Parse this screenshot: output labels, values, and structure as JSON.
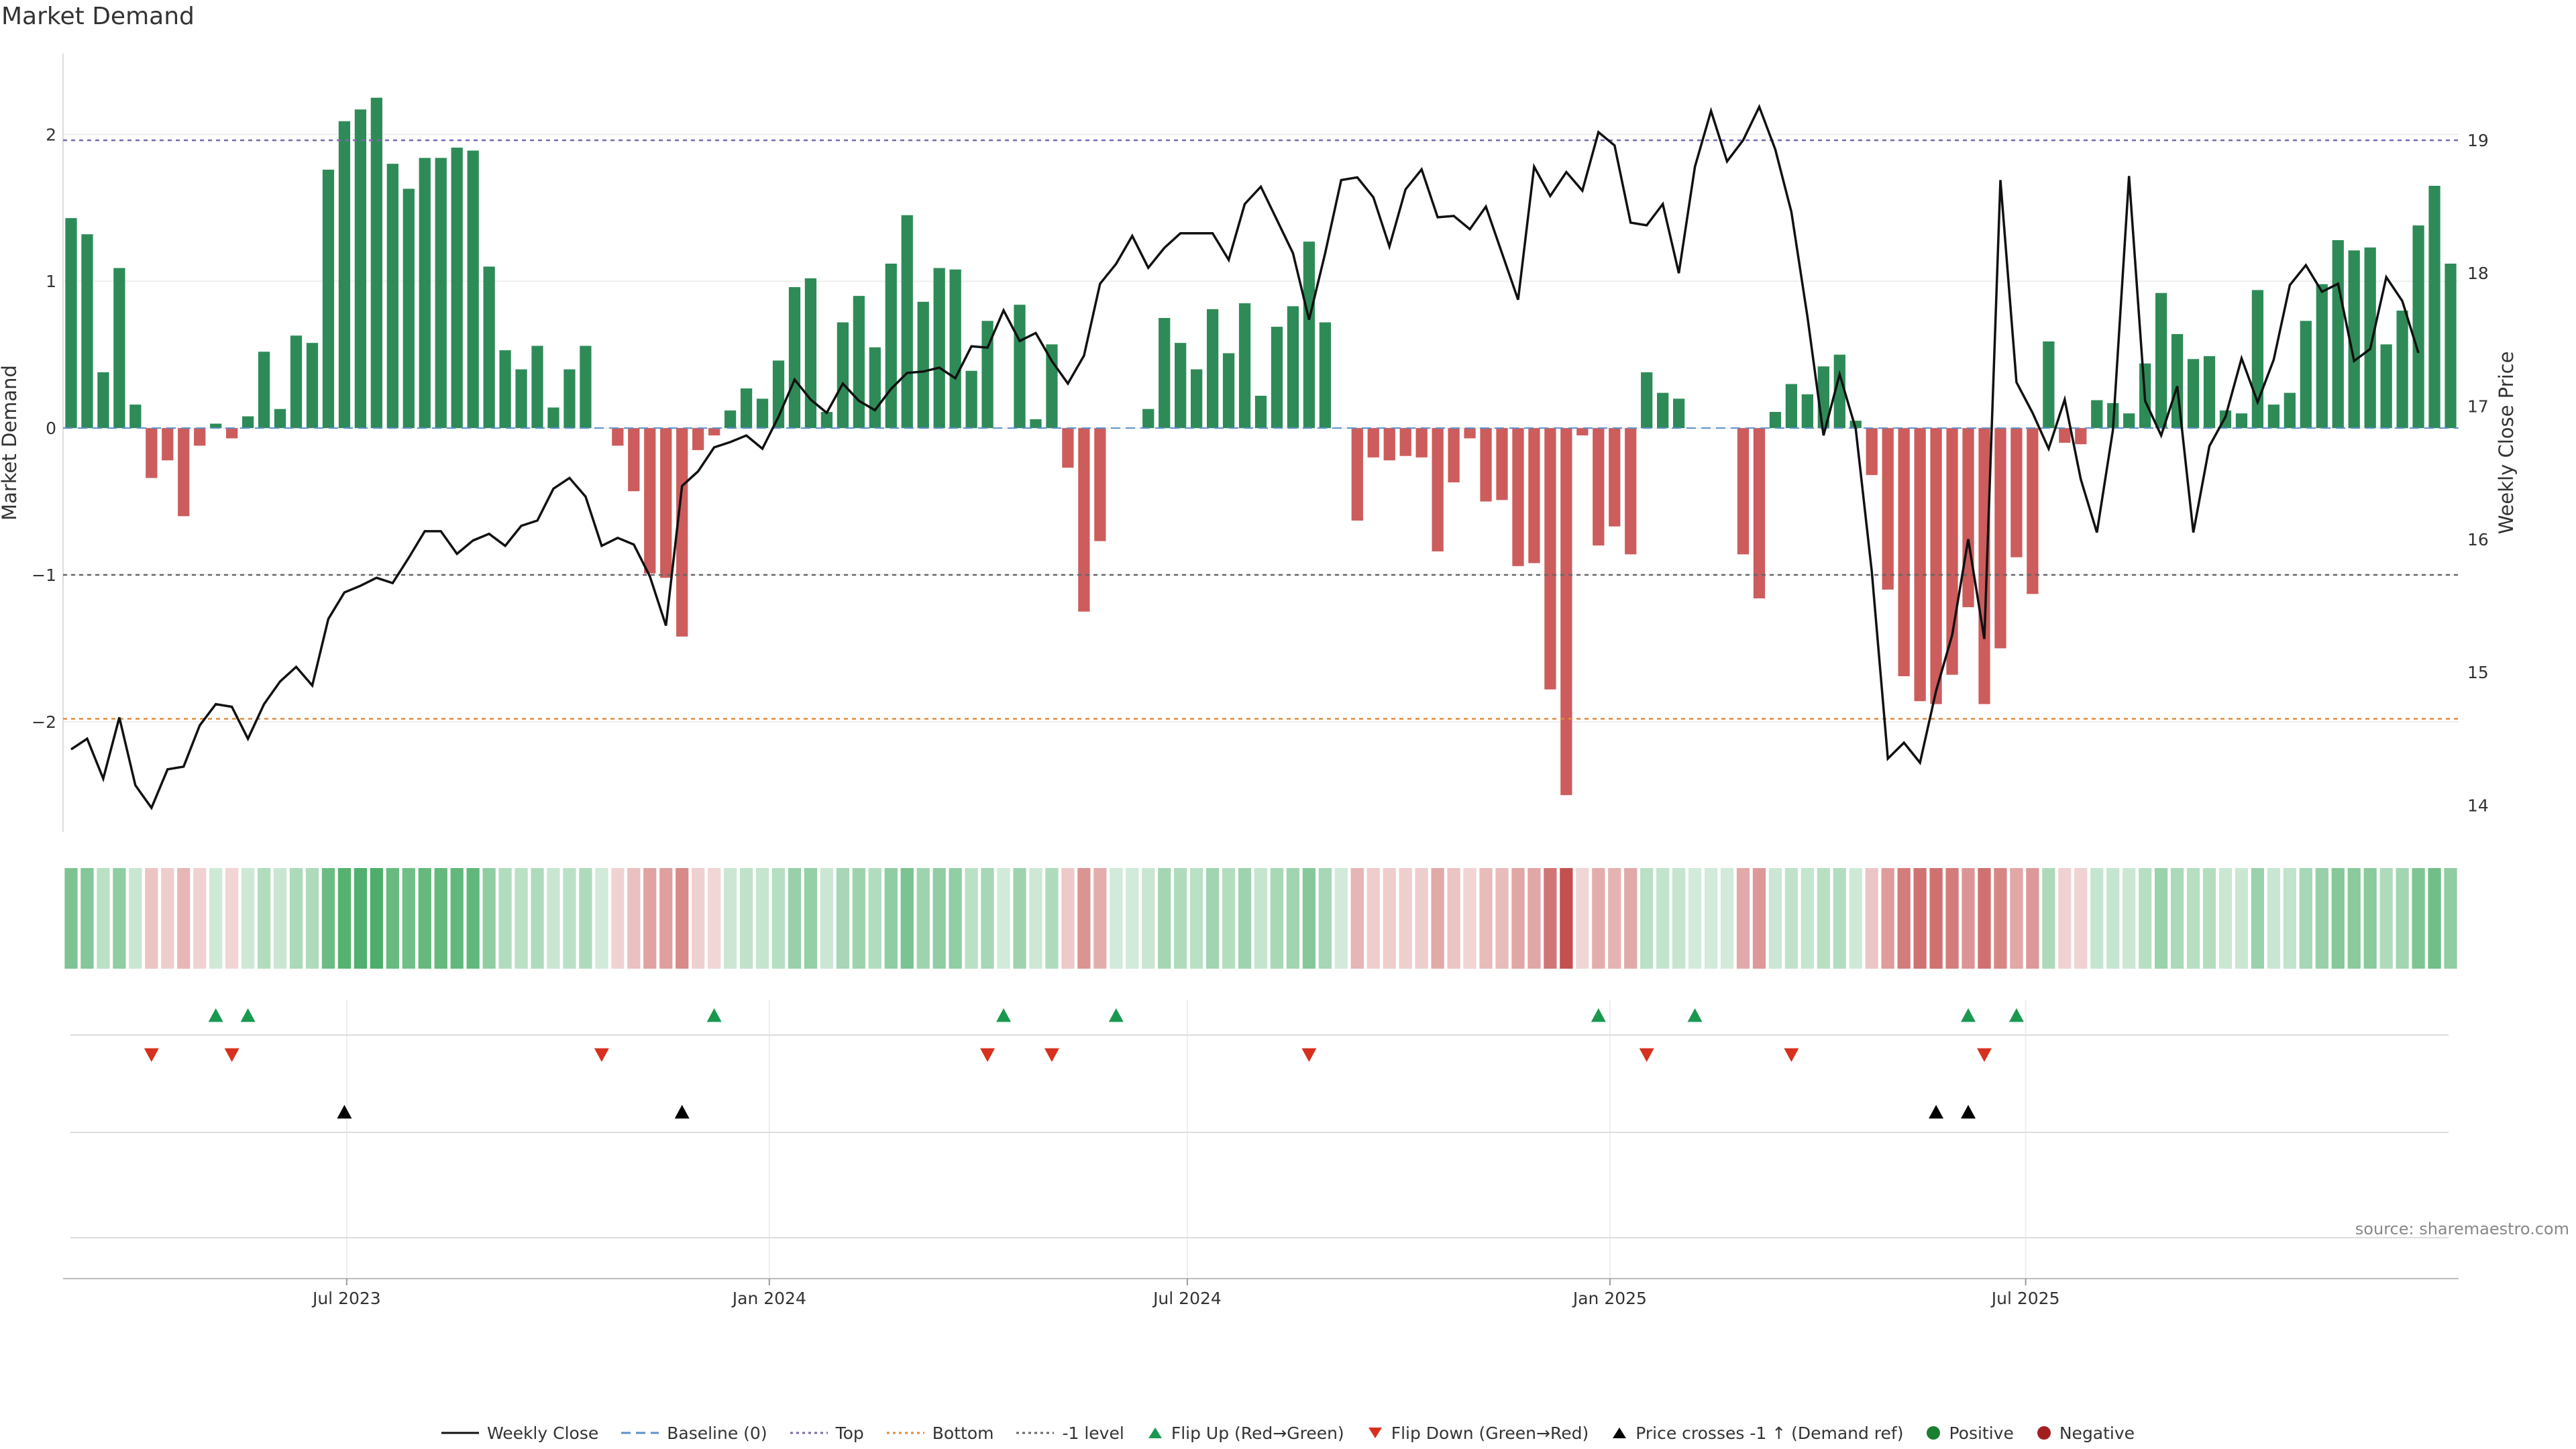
{
  "title": "Market Demand",
  "source": "source: sharemaestro.com",
  "colors": {
    "pos_bar": "#2e8b57",
    "neg_bar": "#cd5c5c",
    "price_line": "#111111",
    "top_line": "#7b68ae",
    "bottom_line": "#e08a3a",
    "minus1_line": "#666666",
    "baseline": "#5b8fc9",
    "flip_up": "#1a9850",
    "flip_down": "#d7301f",
    "cross": "#000000",
    "positive": "#1a7f2e",
    "negative": "#a31f1f"
  },
  "chart_data": {
    "type": "bar",
    "title": "Market Demand",
    "ylabel": "Market Demand",
    "y2label": "Weekly Close Price",
    "ylim": [
      -2.75,
      2.55
    ],
    "y2lim": [
      13.8,
      19.65
    ],
    "yticks": [
      -2,
      -1,
      0,
      1,
      2
    ],
    "y2ticks": [
      14,
      15,
      16,
      17,
      18,
      19
    ],
    "reference_lines": {
      "top": 1.96,
      "bottom": -1.98,
      "minus1": -1.0,
      "baseline": 0
    },
    "start_date": "2023-03-03",
    "x_tick_labels": [
      {
        "label": "Jul 2023",
        "date": "2023-07-01"
      },
      {
        "label": "Jan 2024",
        "date": "2024-01-01"
      },
      {
        "label": "Jul 2024",
        "date": "2024-07-01"
      },
      {
        "label": "Jan 2025",
        "date": "2025-01-01"
      },
      {
        "label": "Jul 2025",
        "date": "2025-07-01"
      }
    ],
    "demand": [
      1.43,
      1.32,
      0.38,
      1.09,
      0.16,
      -0.34,
      -0.22,
      -0.6,
      -0.12,
      0.03,
      -0.07,
      0.08,
      0.52,
      0.13,
      0.63,
      0.58,
      1.76,
      2.09,
      2.17,
      2.25,
      1.8,
      1.63,
      1.84,
      1.84,
      1.91,
      1.89,
      1.1,
      0.53,
      0.4,
      0.56,
      0.14,
      0.4,
      0.56,
      0,
      -0.12,
      -0.43,
      -0.99,
      -1.02,
      -1.42,
      -0.15,
      -0.05,
      0.12,
      0.27,
      0.2,
      0.46,
      0.96,
      1.02,
      0.11,
      0.72,
      0.9,
      0.55,
      1.12,
      1.45,
      0.86,
      1.09,
      1.08,
      0.39,
      0.73,
      0,
      0.84,
      0.06,
      0.57,
      -0.27,
      -1.25,
      -0.77,
      0,
      0,
      0.13,
      0.75,
      0.58,
      0.4,
      0.81,
      0.51,
      0.85,
      0.22,
      0.69,
      0.83,
      1.27,
      0.72,
      0,
      -0.63,
      -0.2,
      -0.22,
      -0.19,
      -0.2,
      -0.84,
      -0.37,
      -0.07,
      -0.5,
      -0.49,
      -0.94,
      -0.92,
      -1.78,
      -2.5,
      -0.05,
      -0.8,
      -0.67,
      -0.86,
      0.38,
      0.24,
      0.2,
      0,
      0,
      0,
      -0.86,
      -1.16,
      0.11,
      0.3,
      0.23,
      0.42,
      0.5,
      0.05,
      -0.32,
      -1.1,
      -1.69,
      -1.86,
      -1.88,
      -1.68,
      -1.22,
      -1.88,
      -1.5,
      -0.88,
      -1.13,
      0.59,
      -0.1,
      -0.11,
      0.19,
      0.17,
      0.1,
      0.44,
      0.92,
      0.64,
      0.47,
      0.49,
      0.12,
      0.1,
      0.94,
      0.16,
      0.24,
      0.73,
      0.98,
      1.28,
      1.21,
      1.23,
      0.57,
      0.8,
      1.38,
      1.65,
      1.12
    ],
    "weekly_close": [
      14.42,
      14.5,
      14.2,
      14.66,
      14.15,
      13.98,
      14.27,
      14.29,
      14.6,
      14.76,
      14.74,
      14.5,
      14.76,
      14.93,
      15.04,
      14.9,
      15.4,
      15.6,
      15.65,
      15.71,
      15.67,
      15.86,
      16.06,
      16.06,
      15.89,
      15.99,
      16.04,
      15.95,
      16.1,
      16.14,
      16.38,
      16.46,
      16.32,
      15.95,
      16.01,
      15.96,
      15.72,
      15.35,
      16.4,
      16.51,
      16.69,
      16.73,
      16.78,
      16.68,
      16.92,
      17.2,
      17.05,
      16.95,
      17.17,
      17.04,
      16.97,
      17.13,
      17.25,
      17.26,
      17.29,
      17.21,
      17.45,
      17.44,
      17.72,
      17.49,
      17.55,
      17.34,
      17.17,
      17.38,
      17.92,
      18.07,
      18.28,
      18.04,
      18.19,
      18.3,
      18.3,
      18.3,
      18.1,
      18.52,
      18.65,
      18.4,
      18.15,
      17.65,
      18.15,
      18.7,
      18.72,
      18.57,
      18.2,
      18.63,
      18.78,
      18.42,
      18.43,
      18.33,
      18.5,
      18.15,
      17.8,
      18.8,
      18.58,
      18.76,
      18.62,
      19.06,
      18.96,
      18.38,
      18.36,
      18.52,
      18.0,
      18.8,
      19.22,
      18.84,
      19.0,
      19.25,
      18.93,
      18.46,
      17.67,
      16.78,
      17.24,
      16.83,
      15.76,
      14.35,
      14.47,
      14.32,
      14.86,
      15.28,
      16.0,
      15.25,
      18.7,
      17.18,
      16.95,
      16.68,
      17.05,
      16.45,
      16.05,
      16.82,
      18.73,
      17.04,
      16.78,
      17.15,
      16.05,
      16.7,
      16.92,
      17.36,
      17.03,
      17.35,
      17.91,
      18.06,
      17.86,
      17.92,
      17.34,
      17.43,
      17.97,
      17.79,
      17.4
    ]
  },
  "signals": {
    "flip_up": [
      9,
      11,
      40,
      58,
      65,
      95,
      101,
      118,
      121
    ],
    "flip_down": [
      5,
      10,
      33,
      57,
      61,
      77,
      98,
      107,
      119
    ],
    "cross_up": [
      17,
      38,
      116,
      118
    ]
  },
  "legend": [
    {
      "key": "weekly_close",
      "label": "Weekly Close"
    },
    {
      "key": "baseline",
      "label": "Baseline (0)"
    },
    {
      "key": "top",
      "label": "Top"
    },
    {
      "key": "bottom",
      "label": "Bottom"
    },
    {
      "key": "minus1",
      "label": "-1 level"
    },
    {
      "key": "flip_up",
      "label": "Flip Up (Red→Green)"
    },
    {
      "key": "flip_down",
      "label": "Flip Down (Green→Red)"
    },
    {
      "key": "cross",
      "label": "Price crosses -1 ↑ (Demand ref)"
    },
    {
      "key": "positive",
      "label": "Positive"
    },
    {
      "key": "negative",
      "label": "Negative"
    }
  ]
}
